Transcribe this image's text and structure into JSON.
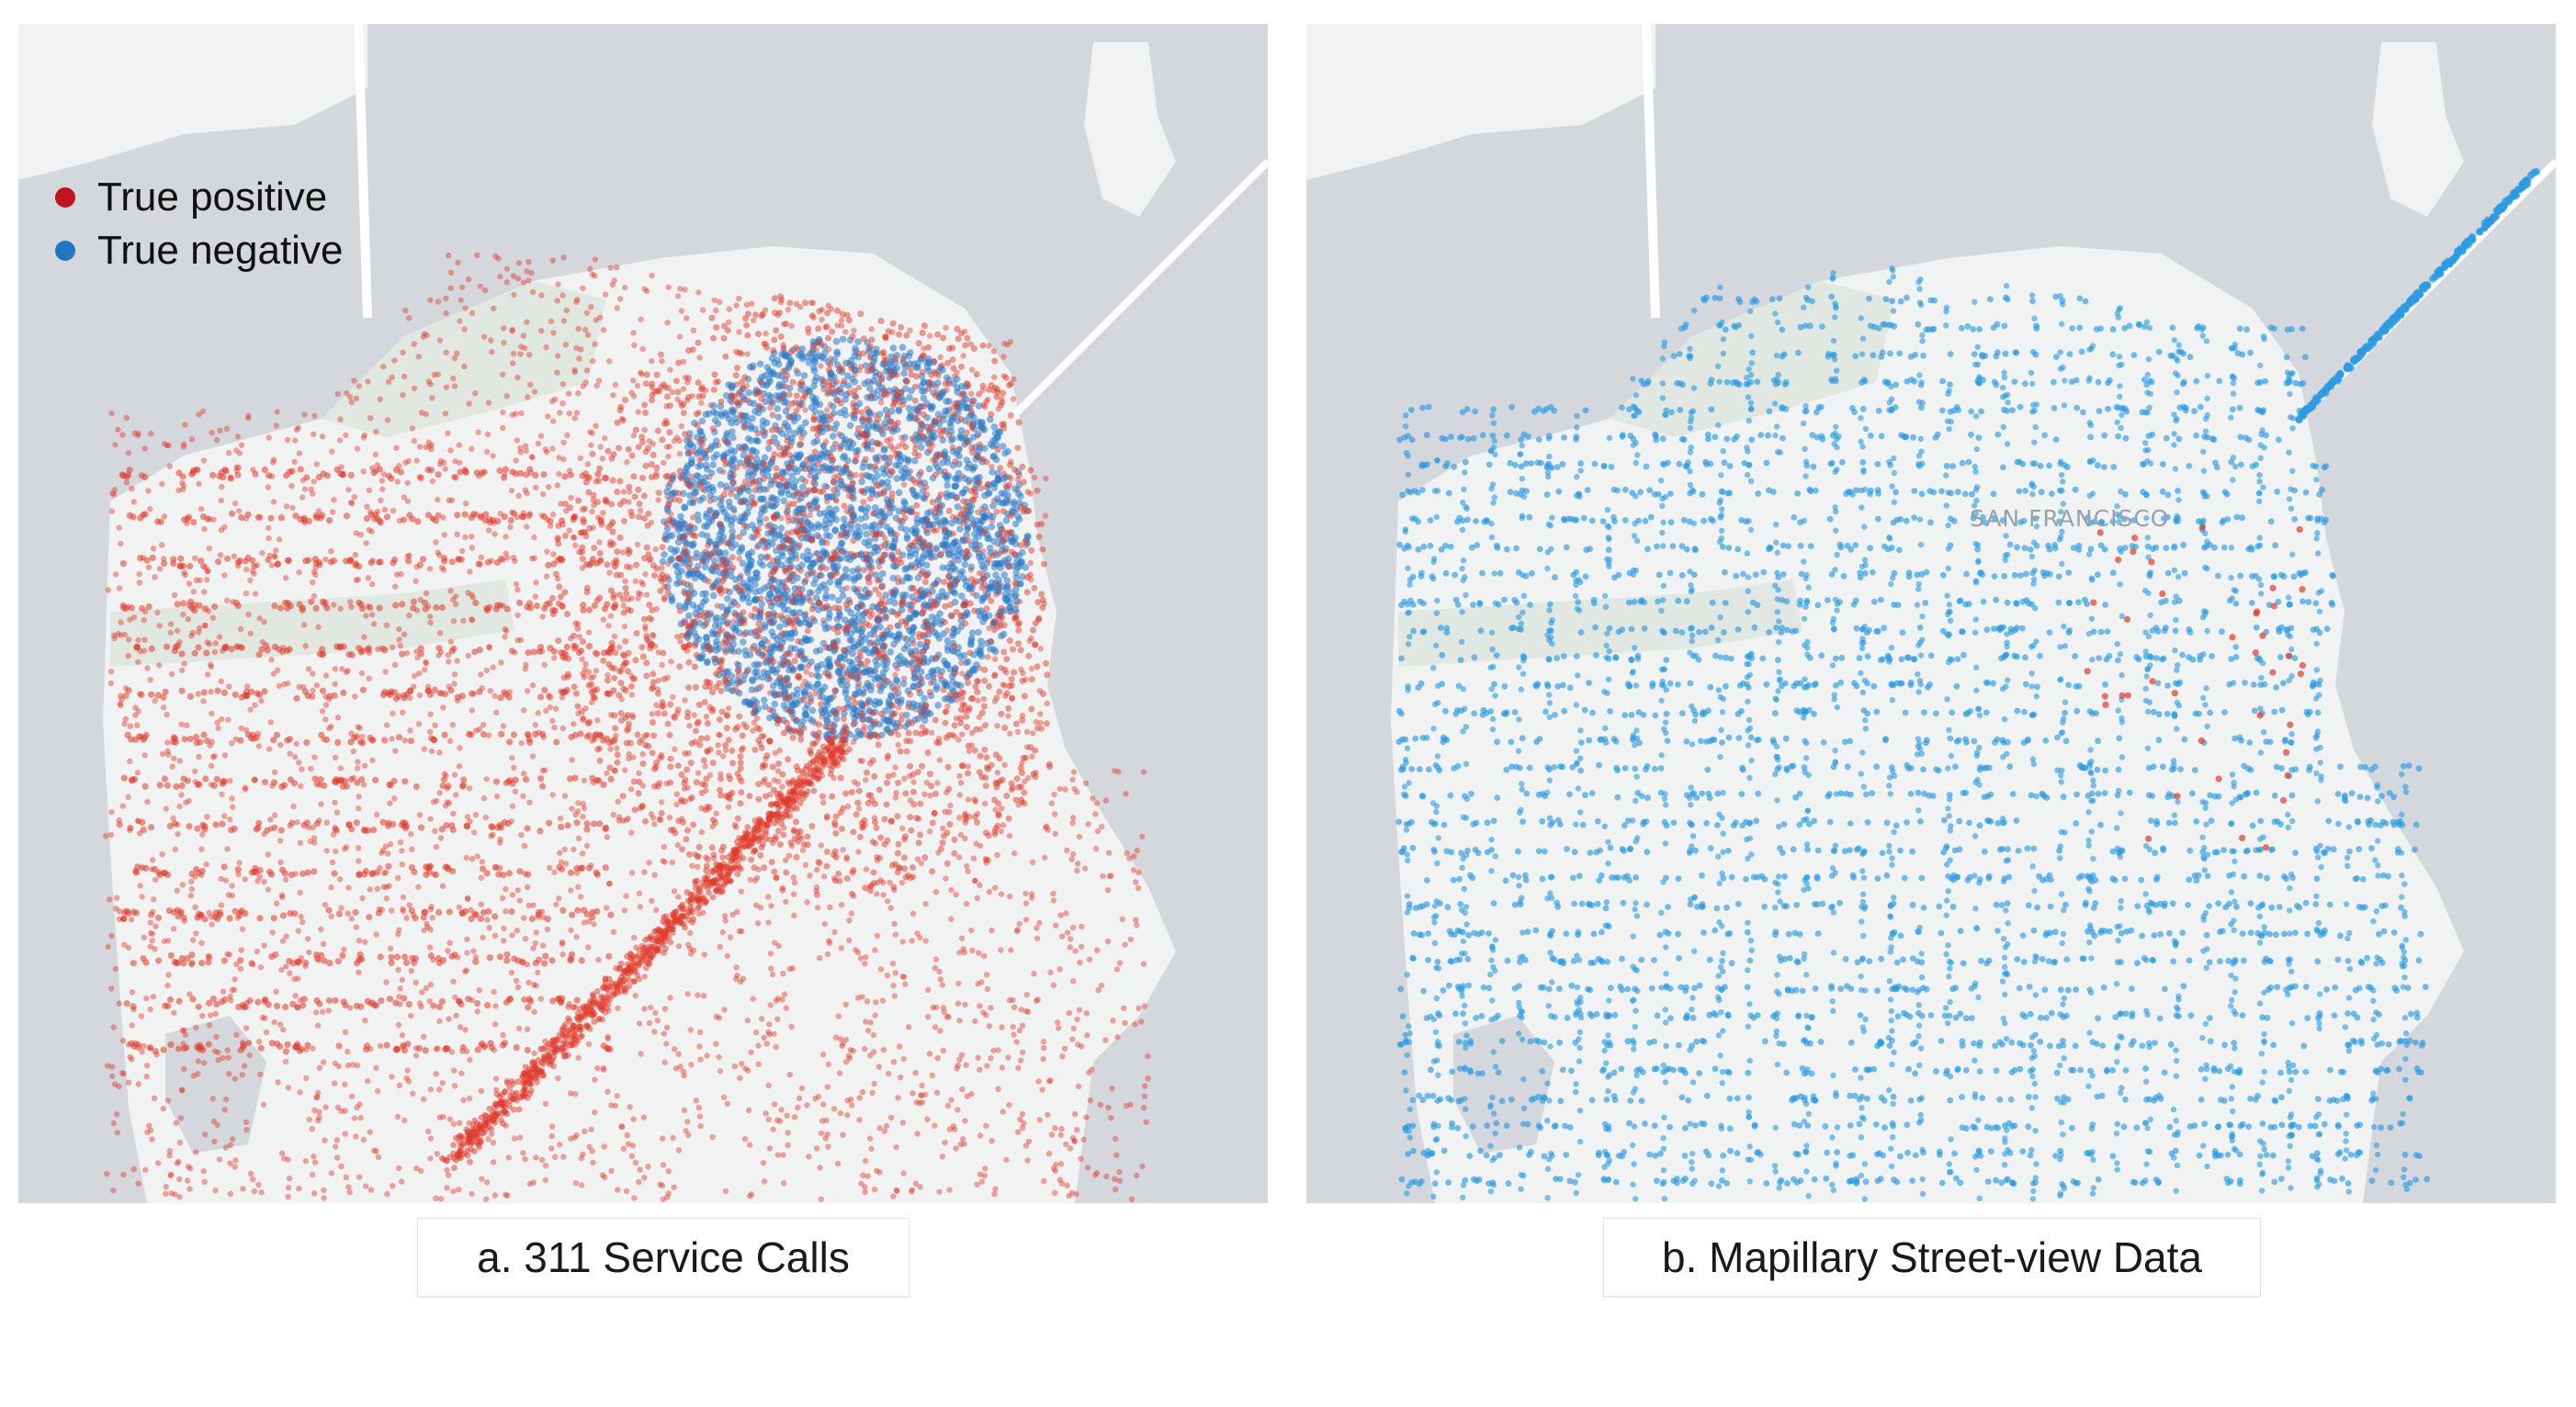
{
  "figure": {
    "panels": [
      {
        "caption": "a. 311 Service Calls",
        "legend": [
          {
            "label": "True positive",
            "color": "#c0141c"
          },
          {
            "label": "True negative",
            "color": "#1f77c4"
          }
        ]
      },
      {
        "caption": "b. Mapillary Street-view Data",
        "map_label": "SAN FRANCISCO"
      }
    ]
  },
  "colors": {
    "water": "#d4d8dc",
    "land": "#f1f2f2",
    "park": "#e1e7e1",
    "red_points": "#e23a2a",
    "blue_points_a": "#2a7ccb",
    "blue_points_b": "#2a9be3"
  }
}
